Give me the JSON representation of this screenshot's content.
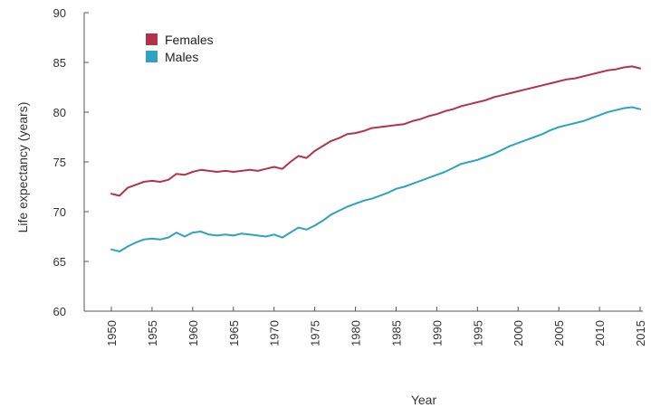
{
  "chart_data": {
    "type": "line",
    "title": "",
    "xlabel": "Year",
    "ylabel": "Life expectancy (years)",
    "xlim": [
      1950,
      2015
    ],
    "ylim": [
      60,
      90
    ],
    "x_ticks": [
      "1950",
      "1955",
      "1960",
      "1965",
      "1970",
      "1975",
      "1980",
      "1985",
      "1990",
      "1995",
      "2000",
      "2005",
      "2010",
      "2015"
    ],
    "y_ticks": [
      "60",
      "65",
      "70",
      "75",
      "80",
      "85",
      "90"
    ],
    "grid": false,
    "legend_position": "top-left",
    "x": [
      1950,
      1951,
      1952,
      1953,
      1954,
      1955,
      1956,
      1957,
      1958,
      1959,
      1960,
      1961,
      1962,
      1963,
      1964,
      1965,
      1966,
      1967,
      1968,
      1969,
      1970,
      1971,
      1972,
      1973,
      1974,
      1975,
      1976,
      1977,
      1978,
      1979,
      1980,
      1981,
      1982,
      1983,
      1984,
      1985,
      1986,
      1987,
      1988,
      1989,
      1990,
      1991,
      1992,
      1993,
      1994,
      1995,
      1996,
      1997,
      1998,
      1999,
      2000,
      2001,
      2002,
      2003,
      2004,
      2005,
      2006,
      2007,
      2008,
      2009,
      2010,
      2011,
      2012,
      2013,
      2014,
      2015
    ],
    "series": [
      {
        "name": "Females",
        "color": "#b5334a",
        "values": [
          71.8,
          71.6,
          72.4,
          72.7,
          73.0,
          73.1,
          73.0,
          73.2,
          73.8,
          73.7,
          74.0,
          74.2,
          74.1,
          74.0,
          74.1,
          74.0,
          74.1,
          74.2,
          74.1,
          74.3,
          74.5,
          74.3,
          75.0,
          75.6,
          75.4,
          76.1,
          76.6,
          77.1,
          77.4,
          77.8,
          77.9,
          78.1,
          78.4,
          78.5,
          78.6,
          78.7,
          78.8,
          79.1,
          79.3,
          79.6,
          79.8,
          80.1,
          80.3,
          80.6,
          80.8,
          81.0,
          81.2,
          81.5,
          81.7,
          81.9,
          82.1,
          82.3,
          82.5,
          82.7,
          82.9,
          83.1,
          83.3,
          83.4,
          83.6,
          83.8,
          84.0,
          84.2,
          84.3,
          84.5,
          84.6,
          84.4
        ]
      },
      {
        "name": "Males",
        "color": "#2ca3c5",
        "values": [
          66.2,
          66.0,
          66.5,
          66.9,
          67.2,
          67.3,
          67.2,
          67.4,
          67.9,
          67.5,
          67.9,
          68.0,
          67.7,
          67.6,
          67.7,
          67.6,
          67.8,
          67.7,
          67.6,
          67.5,
          67.7,
          67.4,
          67.9,
          68.4,
          68.2,
          68.6,
          69.1,
          69.7,
          70.1,
          70.5,
          70.8,
          71.1,
          71.3,
          71.6,
          71.9,
          72.3,
          72.5,
          72.8,
          73.1,
          73.4,
          73.7,
          74.0,
          74.4,
          74.8,
          75.0,
          75.2,
          75.5,
          75.8,
          76.2,
          76.6,
          76.9,
          77.2,
          77.5,
          77.8,
          78.2,
          78.5,
          78.7,
          78.9,
          79.1,
          79.4,
          79.7,
          80.0,
          80.2,
          80.4,
          80.5,
          80.3
        ]
      }
    ]
  }
}
